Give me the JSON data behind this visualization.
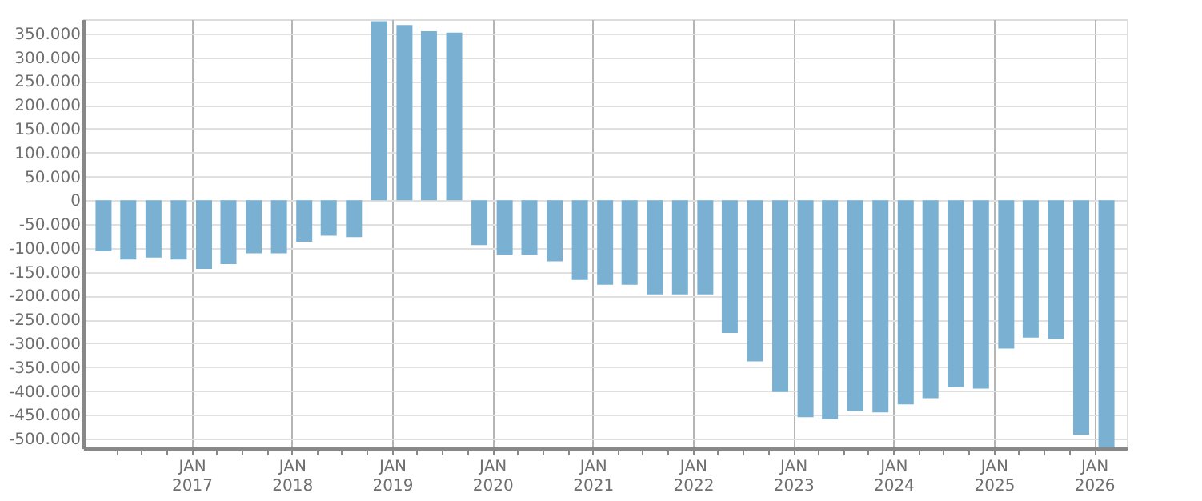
{
  "chart_data": {
    "type": "bar",
    "color": "#7ab1d3",
    "x": [
      "2016-02-15",
      "2016-05-15",
      "2016-08-15",
      "2016-11-15",
      "2017-02-15",
      "2017-05-15",
      "2017-08-15",
      "2017-11-15",
      "2018-02-15",
      "2018-05-15",
      "2018-08-15",
      "2018-11-15",
      "2019-02-15",
      "2019-05-15",
      "2019-08-15",
      "2019-11-15",
      "2020-02-15",
      "2020-05-15",
      "2020-08-15",
      "2020-11-15",
      "2021-02-15",
      "2021-05-15",
      "2021-08-15",
      "2021-11-15",
      "2022-02-15",
      "2022-05-15",
      "2022-08-15",
      "2022-11-15",
      "2023-02-15",
      "2023-05-15",
      "2023-08-15",
      "2023-11-15",
      "2024-02-15",
      "2024-05-15",
      "2024-08-15",
      "2024-11-15",
      "2025-02-15",
      "2025-05-15",
      "2025-08-15",
      "2025-11-15",
      "2026-02-15"
    ],
    "values": [
      -107000,
      -124000,
      -120000,
      -124000,
      -144000,
      -134000,
      -111000,
      -111000,
      -87000,
      -74000,
      -77000,
      376000,
      368000,
      355000,
      352000,
      -94000,
      -114000,
      -114000,
      -128000,
      -167000,
      -177000,
      -177000,
      -197000,
      -197000,
      -197000,
      -278000,
      -338000,
      -402000,
      -455000,
      -459000,
      -442000,
      -445000,
      -428000,
      -415000,
      -392000,
      -395000,
      -311000,
      -288000,
      -291000,
      -492000,
      -518000
    ],
    "xlim": [
      "2016-01-01",
      "2026-04-01"
    ],
    "xticks": [
      {
        "value": "2016-04-01",
        "label": null
      },
      {
        "value": "2016-07-01",
        "label": null
      },
      {
        "value": "2016-10-01",
        "label": null
      },
      {
        "value": "2017-01-01",
        "label": "JAN\n2017"
      },
      {
        "value": "2017-04-01",
        "label": null
      },
      {
        "value": "2017-07-01",
        "label": null
      },
      {
        "value": "2017-10-01",
        "label": null
      },
      {
        "value": "2018-01-01",
        "label": "JAN\n2018"
      },
      {
        "value": "2018-04-01",
        "label": null
      },
      {
        "value": "2018-07-01",
        "label": null
      },
      {
        "value": "2018-10-01",
        "label": null
      },
      {
        "value": "2019-01-01",
        "label": "JAN\n2019"
      },
      {
        "value": "2019-04-01",
        "label": null
      },
      {
        "value": "2019-07-01",
        "label": null
      },
      {
        "value": "2019-10-01",
        "label": null
      },
      {
        "value": "2020-01-01",
        "label": "JAN\n2020"
      },
      {
        "value": "2020-04-01",
        "label": null
      },
      {
        "value": "2020-07-01",
        "label": null
      },
      {
        "value": "2020-10-01",
        "label": null
      },
      {
        "value": "2021-01-01",
        "label": "JAN\n2021"
      },
      {
        "value": "2021-04-01",
        "label": null
      },
      {
        "value": "2021-07-01",
        "label": null
      },
      {
        "value": "2021-10-01",
        "label": null
      },
      {
        "value": "2022-01-01",
        "label": "JAN\n2022"
      },
      {
        "value": "2022-04-01",
        "label": null
      },
      {
        "value": "2022-07-01",
        "label": null
      },
      {
        "value": "2022-10-01",
        "label": null
      },
      {
        "value": "2023-01-01",
        "label": "JAN\n2023"
      },
      {
        "value": "2023-04-01",
        "label": null
      },
      {
        "value": "2023-07-01",
        "label": null
      },
      {
        "value": "2023-10-01",
        "label": null
      },
      {
        "value": "2024-01-01",
        "label": "JAN\n2024"
      },
      {
        "value": "2024-04-01",
        "label": null
      },
      {
        "value": "2024-07-01",
        "label": null
      },
      {
        "value": "2024-10-01",
        "label": null
      },
      {
        "value": "2025-01-01",
        "label": "JAN\n2025"
      },
      {
        "value": "2025-04-01",
        "label": null
      },
      {
        "value": "2025-07-01",
        "label": null
      },
      {
        "value": "2025-10-01",
        "label": null
      },
      {
        "value": "2026-01-01",
        "label": "JAN\n2026"
      }
    ],
    "ylim": [
      -520000,
      380000
    ],
    "yticks": [
      {
        "value": -500000,
        "label": "-500.000"
      },
      {
        "value": -450000,
        "label": "-450.000"
      },
      {
        "value": -400000,
        "label": "-400.000"
      },
      {
        "value": -350000,
        "label": "-350.000"
      },
      {
        "value": -300000,
        "label": "-300.000"
      },
      {
        "value": -250000,
        "label": "-250.000"
      },
      {
        "value": -200000,
        "label": "-200.000"
      },
      {
        "value": -150000,
        "label": "-150.000"
      },
      {
        "value": -100000,
        "label": "-100.000"
      },
      {
        "value": -50000,
        "label": "-50.000"
      },
      0,
      {
        "value": 50000,
        "label": "50.000"
      },
      {
        "value": 100000,
        "label": "100.000"
      },
      {
        "value": 150000,
        "label": "150.000"
      },
      {
        "value": 200000,
        "label": "200.000"
      },
      {
        "value": 250000,
        "label": "250.000"
      },
      {
        "value": 300000,
        "label": "300.000"
      },
      {
        "value": 350000,
        "label": "350.000"
      }
    ],
    "grid": true
  }
}
